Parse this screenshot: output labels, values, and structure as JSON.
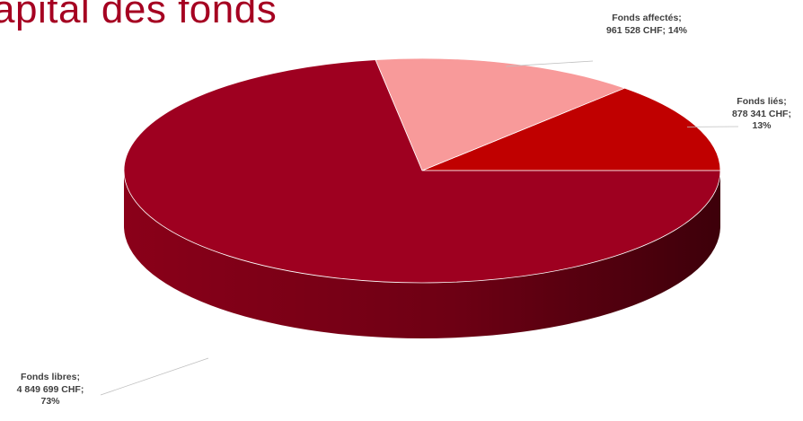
{
  "slide": {
    "title": "apital des fonds"
  },
  "chart_data": {
    "type": "pie",
    "title": "apital des fonds",
    "style": "3d",
    "slices": [
      {
        "label": "Fonds affectés",
        "value": 961528,
        "unit": "CHF",
        "percent": 14,
        "color": "#f89a9a",
        "label_lines": [
          "Fonds affectés;",
          "961 528 CHF; 14%"
        ]
      },
      {
        "label": "Fonds liés",
        "value": 878341,
        "unit": "CHF",
        "percent": 13,
        "color": "#c00000",
        "label_lines": [
          "Fonds liés;",
          "878 341 CHF;",
          "13%"
        ]
      },
      {
        "label": "Fonds libres",
        "value": 4849699,
        "unit": "CHF",
        "percent": 73,
        "color": "#9e0020",
        "label_lines": [
          "Fonds libres;",
          "4 849 699 CHF;",
          "73%"
        ]
      }
    ]
  }
}
